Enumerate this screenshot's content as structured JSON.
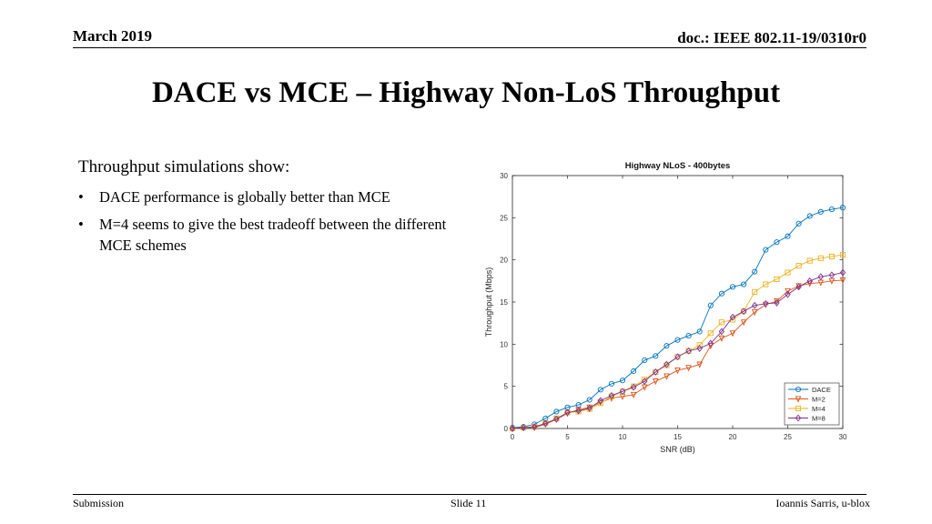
{
  "header": {
    "date": "March 2019",
    "doc": "doc.: IEEE 802.11-19/0310r0"
  },
  "title": "DACE vs MCE – Highway Non-LoS Throughput",
  "body": {
    "intro": "Throughput simulations show:",
    "bullets": [
      "DACE performance is globally better than MCE",
      "M=4 seems to give the best tradeoff between the different MCE schemes"
    ]
  },
  "footer": {
    "left": "Submission",
    "center": "Slide 11",
    "right": "Ioannis Sarris, u-blox"
  },
  "chart_data": {
    "type": "line",
    "title": "Highway NLoS - 400bytes",
    "xlabel": "SNR (dB)",
    "ylabel": "Throughput (Mbps)",
    "xlim": [
      0,
      30
    ],
    "ylim": [
      0,
      30
    ],
    "xticks": [
      0,
      5,
      10,
      15,
      20,
      25,
      30
    ],
    "yticks": [
      0,
      5,
      10,
      15,
      20,
      25,
      30
    ],
    "grid": false,
    "legend_position": "bottom-right",
    "x": [
      0,
      1,
      2,
      3,
      4,
      5,
      6,
      7,
      8,
      9,
      10,
      11,
      12,
      13,
      14,
      15,
      16,
      17,
      18,
      19,
      20,
      21,
      22,
      23,
      24,
      25,
      26,
      27,
      28,
      29,
      30
    ],
    "series": [
      {
        "name": "DACE",
        "color": "#0072BD",
        "marker": "circle",
        "values": [
          0.1,
          0.2,
          0.5,
          1.2,
          2.0,
          2.5,
          2.8,
          3.4,
          4.6,
          5.3,
          5.7,
          6.8,
          8.1,
          8.6,
          9.8,
          10.5,
          11.0,
          11.5,
          14.6,
          16.0,
          16.8,
          17.1,
          18.6,
          21.2,
          22.1,
          22.8,
          24.3,
          25.2,
          25.7,
          26.0,
          26.2
        ]
      },
      {
        "name": "M=2",
        "color": "#D95319",
        "marker": "triangle-down",
        "values": [
          0.0,
          0.1,
          0.1,
          0.5,
          1.1,
          1.8,
          2.2,
          2.5,
          3.1,
          3.6,
          3.8,
          4.0,
          4.9,
          5.6,
          6.2,
          6.9,
          7.2,
          7.6,
          9.8,
          10.7,
          11.3,
          12.6,
          13.8,
          14.7,
          15.1,
          16.3,
          16.9,
          17.2,
          17.3,
          17.5,
          17.6
        ]
      },
      {
        "name": "M=4",
        "color": "#EDB120",
        "marker": "square",
        "values": [
          0.0,
          0.1,
          0.2,
          0.6,
          1.2,
          1.9,
          2.0,
          2.3,
          3.0,
          3.8,
          4.4,
          5.0,
          5.8,
          6.7,
          7.5,
          8.5,
          9.2,
          9.9,
          11.3,
          12.6,
          12.9,
          13.9,
          16.2,
          17.1,
          17.7,
          18.5,
          19.3,
          19.9,
          20.2,
          20.4,
          20.6
        ]
      },
      {
        "name": "M=8",
        "color": "#7E2F8E",
        "marker": "diamond",
        "values": [
          0.0,
          0.1,
          0.2,
          0.6,
          1.1,
          1.9,
          2.1,
          2.4,
          3.3,
          3.9,
          4.4,
          4.9,
          5.6,
          6.7,
          7.6,
          8.5,
          9.2,
          9.5,
          10.1,
          11.5,
          13.2,
          13.9,
          14.6,
          14.8,
          14.9,
          15.9,
          16.8,
          17.5,
          18.0,
          18.2,
          18.5
        ]
      }
    ]
  }
}
